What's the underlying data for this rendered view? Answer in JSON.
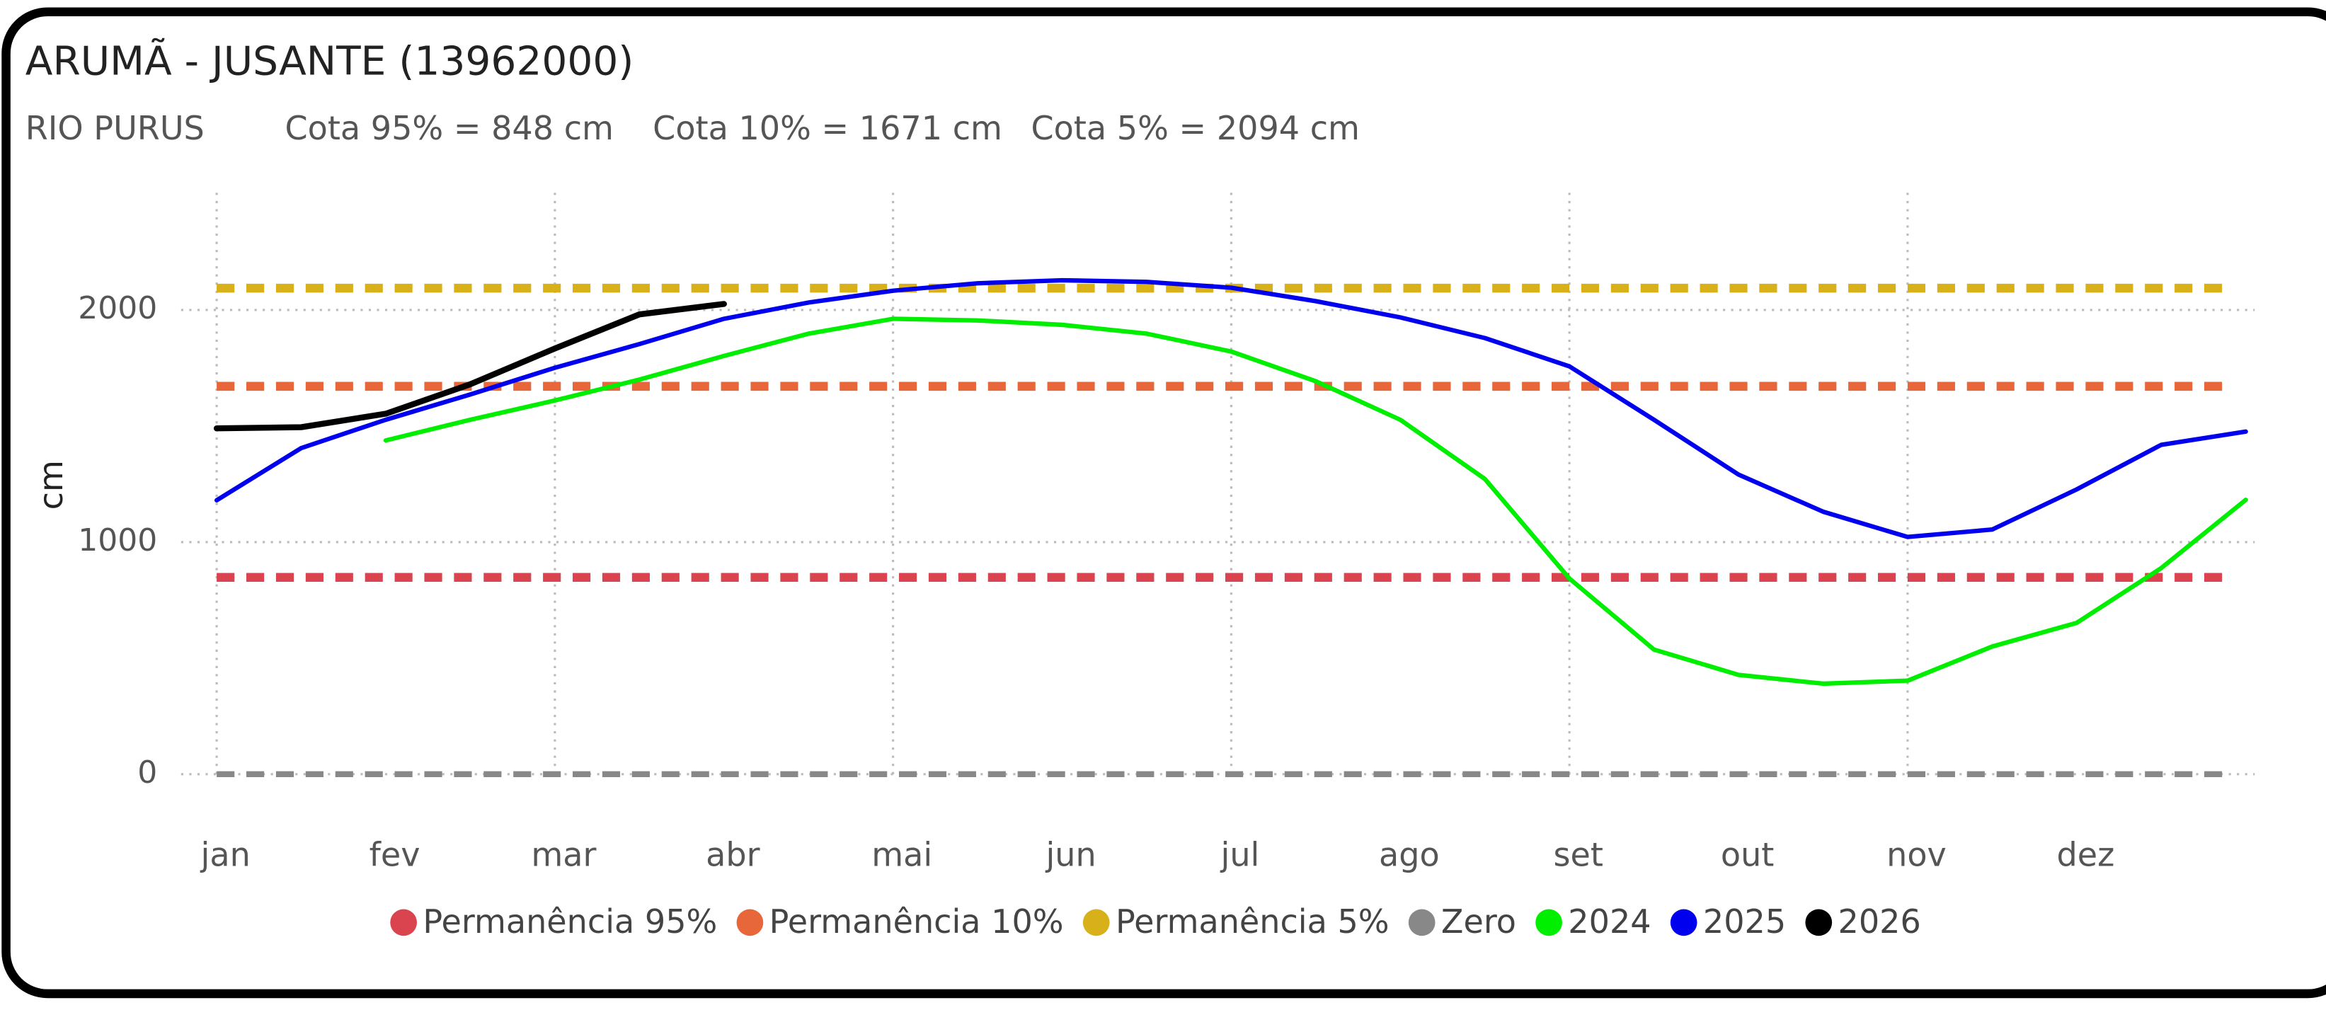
{
  "chart_data": {
    "type": "line",
    "title": "ARUMÃ - JUSANTE (13962000)",
    "subtitle": [
      "RIO PURUS",
      "Cota 95% = 848 cm",
      "Cota 10% = 1671 cm",
      "Cota 5% = 2094 cm"
    ],
    "y_label": "cm",
    "categories": [
      "jan",
      null,
      "fev",
      null,
      "mar",
      null,
      "abr",
      null,
      "mai",
      null,
      "jun",
      null,
      "jul",
      null,
      "ago",
      null,
      "set",
      null,
      "out",
      null,
      "nov",
      null,
      "dez",
      null,
      null
    ],
    "ylim": [
      0,
      2450
    ],
    "yticks": [
      0,
      1000,
      2000
    ],
    "grid": true,
    "legend": "bottom",
    "reference_lines": [
      {
        "name": "Permanência 95%",
        "color": "#d9444f",
        "value": 848
      },
      {
        "name": "Permanência 10%",
        "color": "#e8673a",
        "value": 1671
      },
      {
        "name": "Permanência 5%",
        "color": "#d8b01a",
        "value": 2094
      },
      {
        "name": "Zero",
        "color": "#888888",
        "value": 0
      }
    ],
    "series": [
      {
        "name": "2024",
        "color": "#00ee00",
        "values": [
          null,
          null,
          1438,
          1527,
          1610,
          1700,
          1802,
          1898,
          1962,
          1955,
          1936,
          1898,
          1821,
          1693,
          1527,
          1272,
          843,
          537,
          428,
          390,
          403,
          550,
          652,
          888,
          1182
        ]
      },
      {
        "name": "2025",
        "color": "#0000ee",
        "values": [
          1180,
          1405,
          1527,
          1636,
          1751,
          1853,
          1962,
          2032,
          2083,
          2115,
          2128,
          2121,
          2096,
          2038,
          1968,
          1879,
          1757,
          1527,
          1291,
          1131,
          1022,
          1054,
          1227,
          1419,
          1476
        ]
      },
      {
        "name": "2026",
        "color": "#000000",
        "values": [
          1490,
          1495,
          1553,
          1680,
          1834,
          1981,
          2026,
          null,
          null,
          null,
          null,
          null,
          null,
          null,
          null,
          null,
          null,
          null,
          null,
          null,
          null,
          null,
          null,
          null,
          null
        ]
      }
    ]
  }
}
